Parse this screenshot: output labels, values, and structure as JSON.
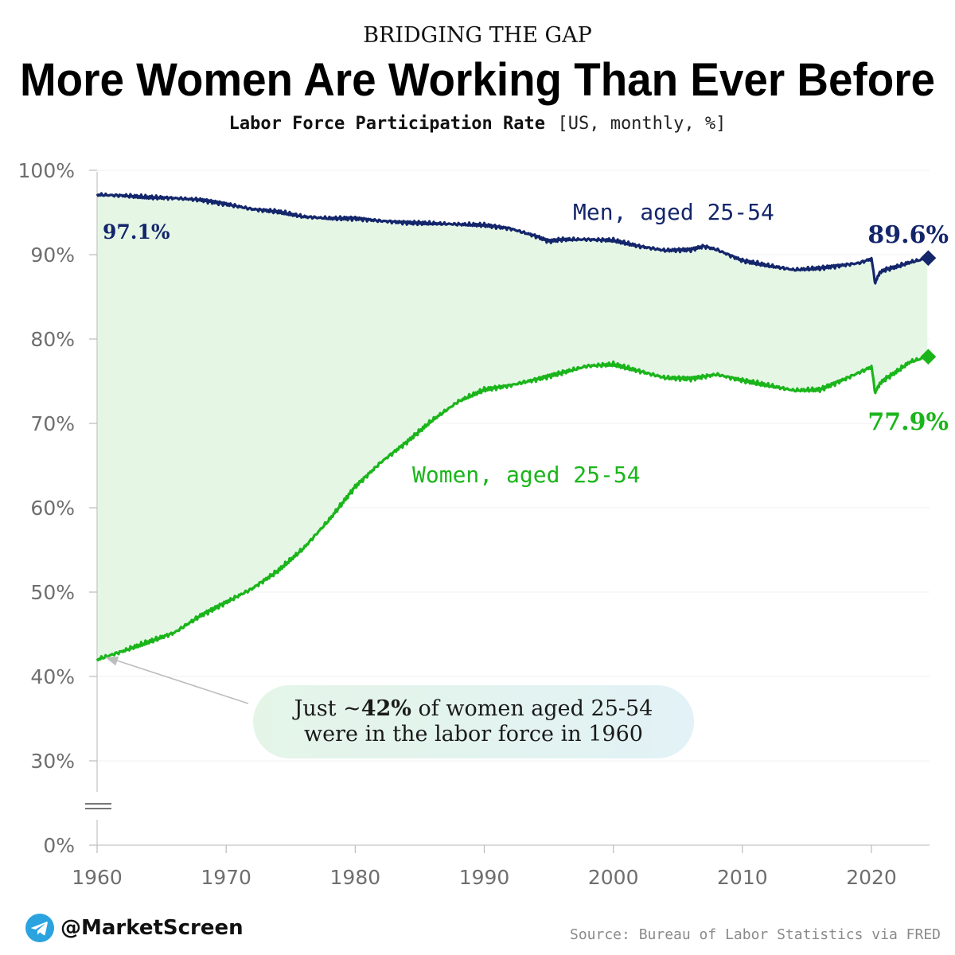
{
  "header": {
    "kicker": "BRIDGING THE GAP",
    "title": "More Women Are Working Than Ever Before",
    "subtitle_bold": "Labor Force Participation Rate",
    "subtitle_units": "[US, monthly, %]"
  },
  "chart_data": {
    "type": "area",
    "title": "More Women Are Working Than Ever Before",
    "subtitle": "Labor Force Participation Rate [US, monthly, %]",
    "xlabel": "",
    "ylabel": "",
    "xlim": [
      1960,
      2024.5
    ],
    "y_axis_break": true,
    "y_ticks": [
      0,
      30,
      40,
      50,
      60,
      70,
      80,
      90,
      100
    ],
    "y_tick_labels": [
      "0%",
      "30%",
      "40%",
      "50%",
      "60%",
      "70%",
      "80%",
      "90%",
      "100%"
    ],
    "x_ticks": [
      1960,
      1970,
      1980,
      1990,
      2000,
      2010,
      2020
    ],
    "x_tick_labels": [
      "1960",
      "1970",
      "1980",
      "1990",
      "2000",
      "2010",
      "2020"
    ],
    "fill_between_series": true,
    "series": [
      {
        "name": "Men, aged 25-54",
        "color": "#14266b",
        "start_label": "97.1%",
        "end_label": "89.6%",
        "points": [
          [
            1960,
            97.1
          ],
          [
            1962,
            97.0
          ],
          [
            1964,
            96.8
          ],
          [
            1966,
            96.7
          ],
          [
            1968,
            96.5
          ],
          [
            1970,
            96.0
          ],
          [
            1972,
            95.4
          ],
          [
            1974,
            95.1
          ],
          [
            1976,
            94.5
          ],
          [
            1978,
            94.3
          ],
          [
            1980,
            94.3
          ],
          [
            1982,
            94.0
          ],
          [
            1984,
            93.8
          ],
          [
            1986,
            93.7
          ],
          [
            1988,
            93.6
          ],
          [
            1990,
            93.5
          ],
          [
            1992,
            93.1
          ],
          [
            1994,
            92.2
          ],
          [
            1995,
            91.6
          ],
          [
            1996,
            91.8
          ],
          [
            1998,
            91.8
          ],
          [
            2000,
            91.7
          ],
          [
            2002,
            91.0
          ],
          [
            2004,
            90.5
          ],
          [
            2006,
            90.6
          ],
          [
            2007,
            91.0
          ],
          [
            2008,
            90.6
          ],
          [
            2010,
            89.3
          ],
          [
            2012,
            88.7
          ],
          [
            2014,
            88.2
          ],
          [
            2016,
            88.4
          ],
          [
            2018,
            88.8
          ],
          [
            2019,
            89.0
          ],
          [
            2020,
            89.5
          ],
          [
            2020.3,
            86.6
          ],
          [
            2020.6,
            87.8
          ],
          [
            2021,
            88.2
          ],
          [
            2022,
            88.6
          ],
          [
            2023,
            89.1
          ],
          [
            2024.4,
            89.6
          ]
        ]
      },
      {
        "name": "Women, aged 25-54",
        "color": "#1ab51a",
        "start_label": "",
        "end_label": "77.9%",
        "points": [
          [
            1960,
            42.0
          ],
          [
            1962,
            43.0
          ],
          [
            1964,
            44.1
          ],
          [
            1966,
            45.2
          ],
          [
            1968,
            47.2
          ],
          [
            1970,
            48.8
          ],
          [
            1972,
            50.4
          ],
          [
            1974,
            52.5
          ],
          [
            1976,
            55.2
          ],
          [
            1978,
            58.6
          ],
          [
            1980,
            62.5
          ],
          [
            1982,
            65.4
          ],
          [
            1984,
            67.8
          ],
          [
            1986,
            70.4
          ],
          [
            1988,
            72.6
          ],
          [
            1990,
            74.0
          ],
          [
            1992,
            74.5
          ],
          [
            1994,
            75.2
          ],
          [
            1996,
            76.0
          ],
          [
            1998,
            76.8
          ],
          [
            2000,
            77.0
          ],
          [
            2002,
            76.2
          ],
          [
            2004,
            75.4
          ],
          [
            2006,
            75.3
          ],
          [
            2008,
            75.8
          ],
          [
            2010,
            75.1
          ],
          [
            2012,
            74.5
          ],
          [
            2014,
            73.9
          ],
          [
            2016,
            74.0
          ],
          [
            2018,
            75.3
          ],
          [
            2019,
            76.0
          ],
          [
            2020,
            76.7
          ],
          [
            2020.3,
            73.6
          ],
          [
            2020.6,
            74.6
          ],
          [
            2021,
            75.2
          ],
          [
            2022,
            76.2
          ],
          [
            2023,
            77.3
          ],
          [
            2024.4,
            77.9
          ]
        ]
      }
    ],
    "annotations": {
      "men_label": "Men, aged 25-54",
      "women_label": "Women, aged 25-54",
      "men_start": "97.1%",
      "men_end": "89.6%",
      "women_end": "77.9%"
    }
  },
  "callout": {
    "line1_prefix": "Just ~",
    "line1_bold": "42%",
    "line1_suffix": " of women aged 25-54",
    "line2": "were in the labor force in 1960"
  },
  "footer": {
    "brand": "@MarketScreen",
    "source": "Source: Bureau of Labor Statistics via FRED"
  },
  "colors": {
    "men": "#14266b",
    "women": "#1ab51a",
    "fill": "#e5f6e5",
    "axis_text": "#6e6e6e",
    "gridline": "#f0f0f0"
  }
}
